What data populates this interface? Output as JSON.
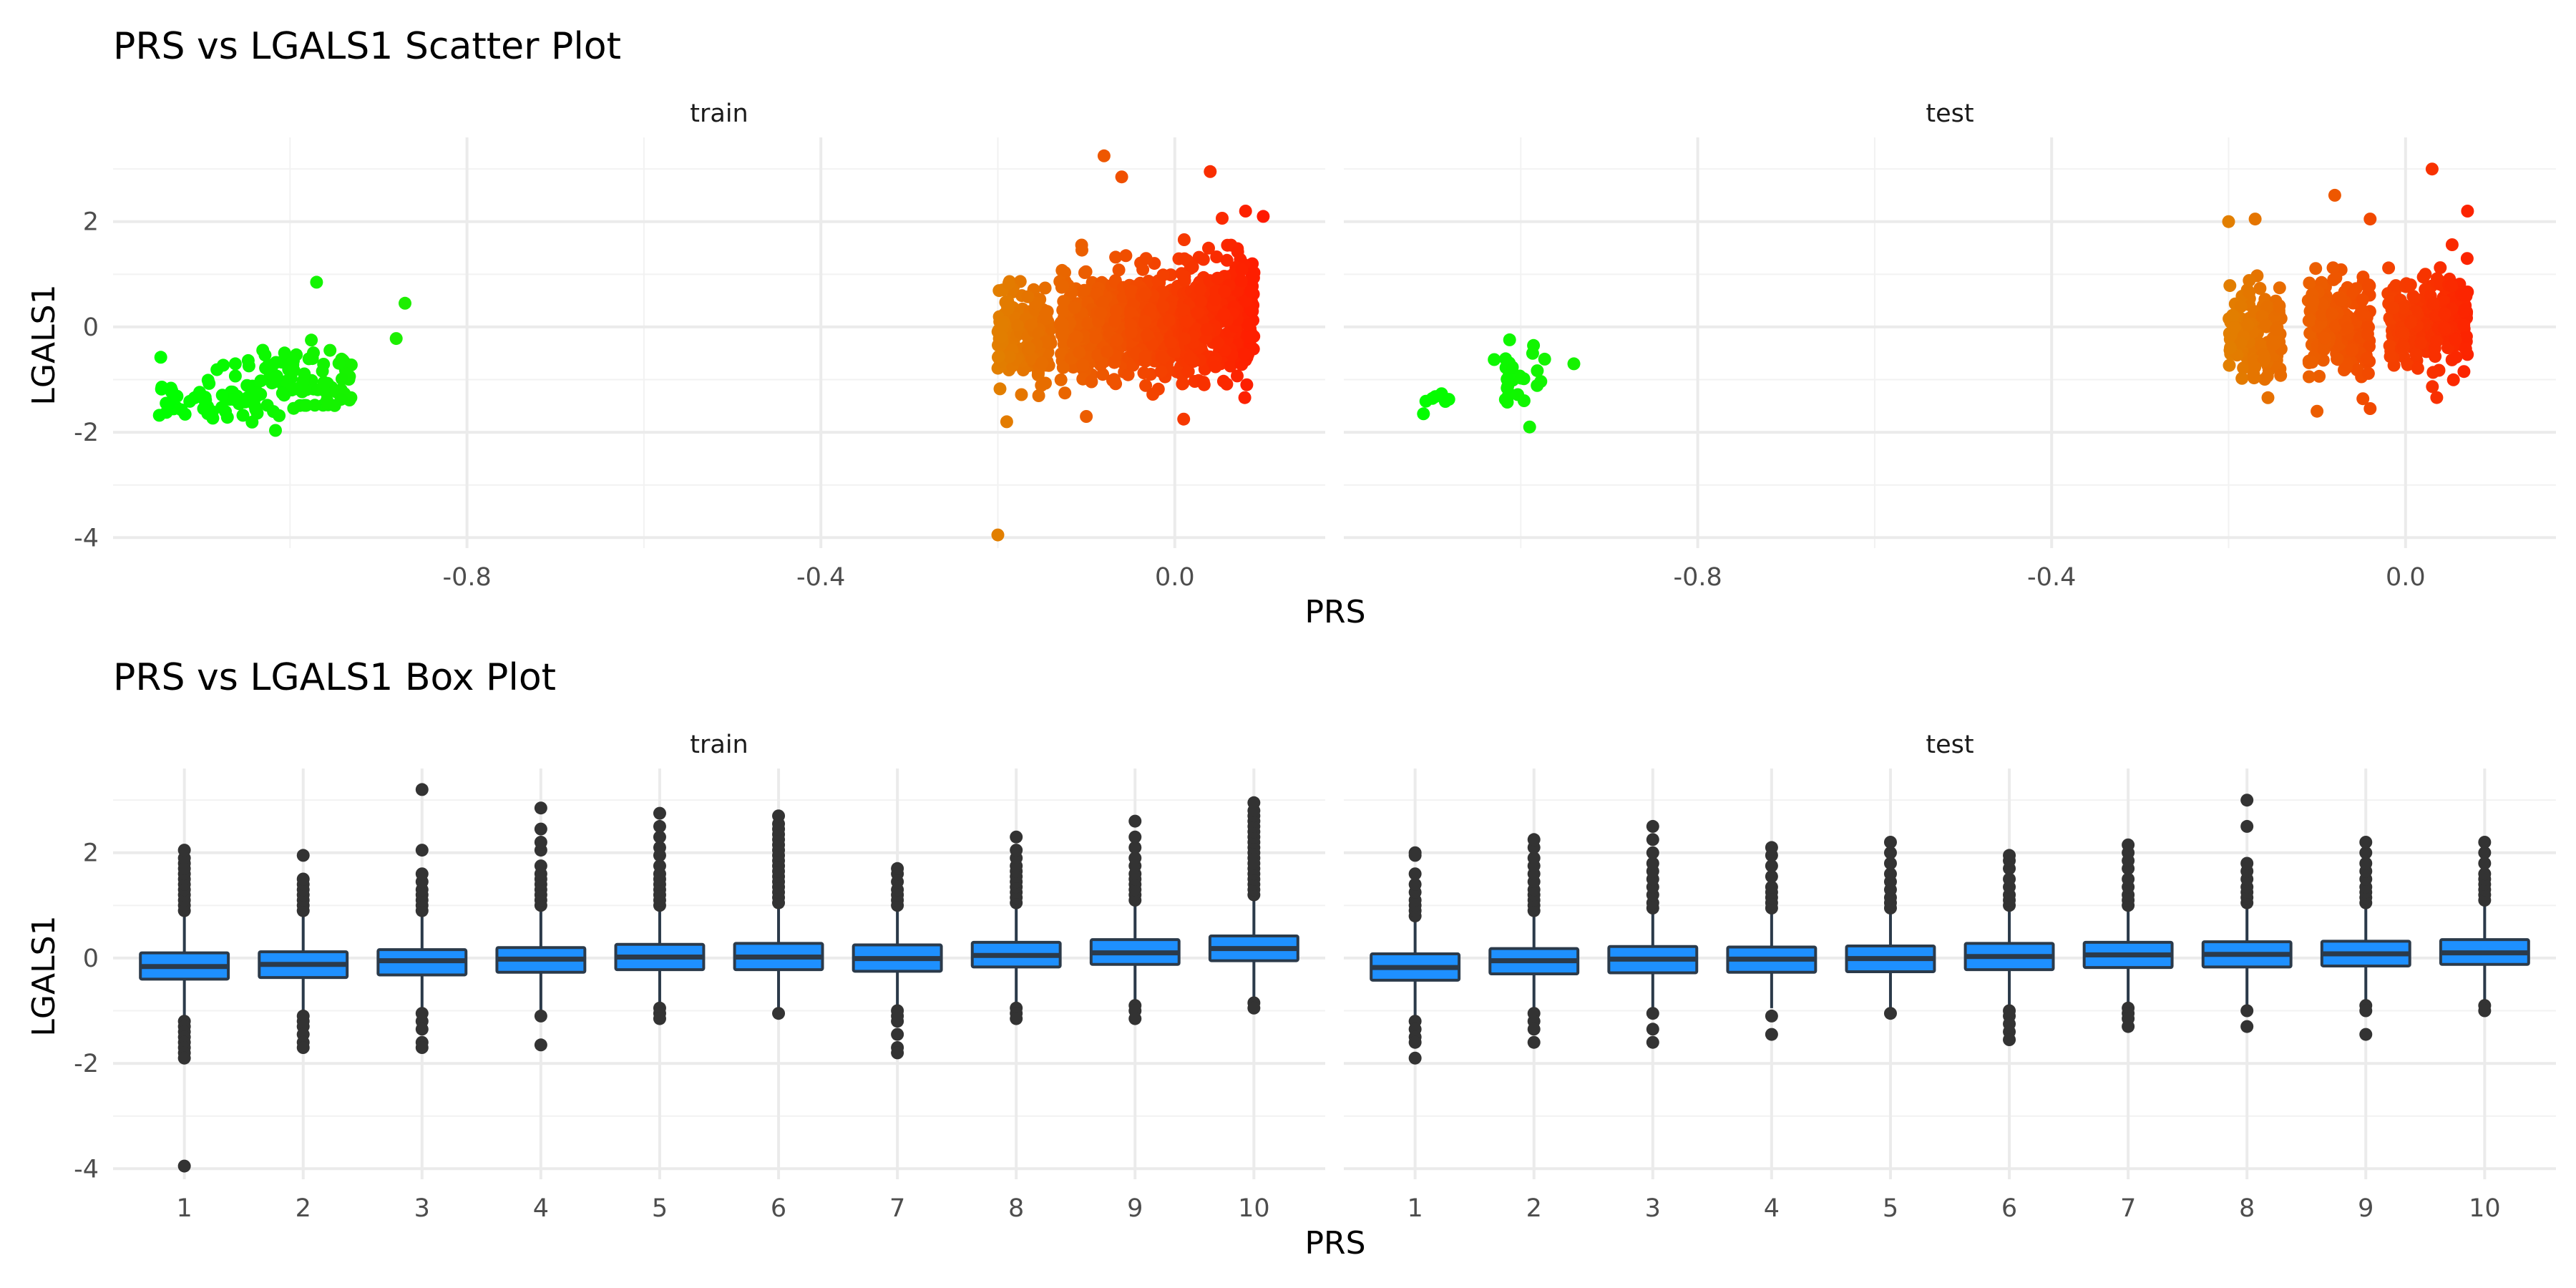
{
  "chart_data": [
    {
      "type": "scatter",
      "title": "PRS vs LGALS1 Scatter Plot",
      "xlabel": "PRS",
      "ylabel": "LGALS1",
      "xlim": [
        -1.2,
        0.17
      ],
      "ylim": [
        -4.2,
        3.6
      ],
      "x_ticks": [
        "-0.8",
        "-0.4",
        "0.0"
      ],
      "y_ticks": [
        "-4",
        "-2",
        "0",
        "2"
      ],
      "color_gradient": {
        "low": "#00ff00",
        "mid": "#e27f00",
        "high": "#ff1a00"
      },
      "grid": true,
      "legend": "none",
      "panels": [
        {
          "name": "train",
          "clusters": [
            {
              "x_range": [
                -1.15,
                -1.04
              ],
              "y_mean": -1.3,
              "y_sd": 0.3,
              "n": 55
            },
            {
              "x_range": [
                -1.05,
                -0.93
              ],
              "y_mean": -1.05,
              "y_sd": 0.35,
              "n": 90
            },
            {
              "x_range": [
                -0.2,
                -0.14
              ],
              "y_mean": -0.2,
              "y_sd": 0.45,
              "n": 180
            },
            {
              "x_range": [
                -0.13,
                -0.05
              ],
              "y_mean": 0.0,
              "y_sd": 0.5,
              "n": 300
            },
            {
              "x_range": [
                -0.05,
                0.01
              ],
              "y_mean": 0.05,
              "y_sd": 0.5,
              "n": 300
            },
            {
              "x_range": [
                0.01,
                0.09
              ],
              "y_mean": 0.15,
              "y_sd": 0.55,
              "n": 350
            }
          ],
          "points": [
            {
              "x": -0.97,
              "y": 0.85
            },
            {
              "x": -0.87,
              "y": 0.45
            },
            {
              "x": -0.88,
              "y": -0.22
            },
            {
              "x": -0.2,
              "y": -3.95
            },
            {
              "x": -0.19,
              "y": -1.8
            },
            {
              "x": -0.08,
              "y": 3.25
            },
            {
              "x": -0.06,
              "y": 2.85
            },
            {
              "x": 0.04,
              "y": 2.95
            },
            {
              "x": 0.08,
              "y": 2.2
            },
            {
              "x": 0.1,
              "y": 2.1
            },
            {
              "x": 0.01,
              "y": -1.75
            },
            {
              "x": -0.1,
              "y": -1.7
            }
          ]
        },
        {
          "name": "test",
          "clusters": [
            {
              "x_range": [
                -1.11,
                -1.08
              ],
              "y_mean": -1.35,
              "y_sd": 0.1,
              "n": 6
            },
            {
              "x_range": [
                -1.02,
                -0.97
              ],
              "y_mean": -0.9,
              "y_sd": 0.35,
              "n": 25
            },
            {
              "x_range": [
                -0.2,
                -0.14
              ],
              "y_mean": -0.1,
              "y_sd": 0.4,
              "n": 160
            },
            {
              "x_range": [
                -0.11,
                -0.04
              ],
              "y_mean": 0.05,
              "y_sd": 0.45,
              "n": 220
            },
            {
              "x_range": [
                -0.02,
                0.07
              ],
              "y_mean": 0.1,
              "y_sd": 0.45,
              "n": 260
            }
          ],
          "points": [
            {
              "x": -1.11,
              "y": -1.65
            },
            {
              "x": -0.99,
              "y": -1.9
            },
            {
              "x": -0.94,
              "y": -0.7
            },
            {
              "x": -1.03,
              "y": -0.62
            },
            {
              "x": -0.2,
              "y": 2.0
            },
            {
              "x": -0.17,
              "y": 2.05
            },
            {
              "x": -0.08,
              "y": 2.5
            },
            {
              "x": -0.04,
              "y": 2.05
            },
            {
              "x": 0.03,
              "y": 3.0
            },
            {
              "x": 0.07,
              "y": 2.2
            },
            {
              "x": -0.1,
              "y": -1.6
            },
            {
              "x": -0.04,
              "y": -1.55
            }
          ]
        }
      ]
    },
    {
      "type": "box",
      "title": "PRS vs LGALS1 Box Plot",
      "xlabel": "PRS",
      "ylabel": "LGALS1",
      "ylim": [
        -4.2,
        3.6
      ],
      "categories": [
        "1",
        "2",
        "3",
        "4",
        "5",
        "6",
        "7",
        "8",
        "9",
        "10"
      ],
      "y_ticks": [
        "-4",
        "-2",
        "0",
        "2"
      ],
      "box_fill": "#1e90ff",
      "box_stroke": "#2b3a4a",
      "outlier_color": "#333333",
      "grid": true,
      "panels": [
        {
          "name": "train",
          "boxes": [
            {
              "q1": -0.4,
              "median": -0.16,
              "q3": 0.1,
              "whisker_low": -1.15,
              "whisker_high": 0.85,
              "outliers_high": [
                0.9,
                1.0,
                1.1,
                1.2,
                1.3,
                1.4,
                1.5,
                1.6,
                1.7,
                1.8,
                1.9,
                2.05
              ],
              "outliers_low": [
                -1.2,
                -1.3,
                -1.4,
                -1.5,
                -1.6,
                -1.7,
                -1.8,
                -1.9,
                -3.95
              ]
            },
            {
              "q1": -0.37,
              "median": -0.12,
              "q3": 0.12,
              "whisker_low": -1.05,
              "whisker_high": 0.82,
              "outliers_high": [
                0.9,
                1.0,
                1.1,
                1.2,
                1.3,
                1.4,
                1.5,
                1.95
              ],
              "outliers_low": [
                -1.1,
                -1.2,
                -1.3,
                -1.45,
                -1.6,
                -1.7
              ]
            },
            {
              "q1": -0.32,
              "median": -0.05,
              "q3": 0.16,
              "whisker_low": -1.0,
              "whisker_high": 0.85,
              "outliers_high": [
                0.9,
                1.0,
                1.1,
                1.2,
                1.3,
                1.45,
                1.6,
                2.05,
                3.2
              ],
              "outliers_low": [
                -1.05,
                -1.2,
                -1.35,
                -1.6,
                -1.7
              ]
            },
            {
              "q1": -0.27,
              "median": -0.02,
              "q3": 0.2,
              "whisker_low": -1.0,
              "whisker_high": 0.9,
              "outliers_high": [
                1.0,
                1.1,
                1.2,
                1.3,
                1.4,
                1.5,
                1.6,
                1.75,
                2.05,
                2.2,
                2.45,
                2.85
              ],
              "outliers_low": [
                -1.1,
                -1.65
              ]
            },
            {
              "q1": -0.22,
              "median": 0.02,
              "q3": 0.26,
              "whisker_low": -0.95,
              "whisker_high": 0.95,
              "outliers_high": [
                1.0,
                1.1,
                1.2,
                1.3,
                1.4,
                1.5,
                1.6,
                1.75,
                1.95,
                2.1,
                2.3,
                2.5,
                2.75
              ],
              "outliers_low": [
                -0.95,
                -1.05,
                -1.15
              ]
            },
            {
              "q1": -0.22,
              "median": 0.02,
              "q3": 0.28,
              "whisker_low": -1.0,
              "whisker_high": 1.0,
              "outliers_high": [
                1.05,
                1.15,
                1.25,
                1.35,
                1.45,
                1.55,
                1.65,
                1.75,
                1.85,
                1.95,
                2.05,
                2.15,
                2.25,
                2.35,
                2.45,
                2.55,
                2.7
              ],
              "outliers_low": [
                -1.05
              ]
            },
            {
              "q1": -0.25,
              "median": -0.01,
              "q3": 0.25,
              "whisker_low": -0.95,
              "whisker_high": 0.95,
              "outliers_high": [
                1.0,
                1.1,
                1.2,
                1.3,
                1.45,
                1.6,
                1.7
              ],
              "outliers_low": [
                -1.0,
                -1.1,
                -1.2,
                -1.45,
                -1.7,
                -1.8
              ]
            },
            {
              "q1": -0.17,
              "median": 0.05,
              "q3": 0.3,
              "whisker_low": -0.9,
              "whisker_high": 1.0,
              "outliers_high": [
                1.05,
                1.15,
                1.25,
                1.35,
                1.45,
                1.55,
                1.65,
                1.75,
                1.9,
                2.05,
                2.3
              ],
              "outliers_low": [
                -0.95,
                -1.05,
                -1.15
              ]
            },
            {
              "q1": -0.12,
              "median": 0.1,
              "q3": 0.35,
              "whisker_low": -0.85,
              "whisker_high": 1.05,
              "outliers_high": [
                1.1,
                1.2,
                1.3,
                1.4,
                1.5,
                1.6,
                1.75,
                1.9,
                2.1,
                2.3,
                2.6
              ],
              "outliers_low": [
                -0.9,
                -1.0,
                -1.15
              ]
            },
            {
              "q1": -0.05,
              "median": 0.18,
              "q3": 0.42,
              "whisker_low": -0.8,
              "whisker_high": 1.15,
              "outliers_high": [
                1.2,
                1.3,
                1.4,
                1.5,
                1.6,
                1.7,
                1.8,
                1.9,
                2.0,
                2.1,
                2.2,
                2.3,
                2.4,
                2.5,
                2.6,
                2.7,
                2.8,
                2.95
              ],
              "outliers_low": [
                -0.85,
                -0.95
              ]
            }
          ]
        },
        {
          "name": "test",
          "boxes": [
            {
              "q1": -0.42,
              "median": -0.18,
              "q3": 0.08,
              "whisker_low": -1.1,
              "whisker_high": 0.75,
              "outliers_high": [
                0.8,
                0.9,
                1.0,
                1.1,
                1.25,
                1.4,
                1.6,
                1.95,
                2.0
              ],
              "outliers_low": [
                -1.2,
                -1.35,
                -1.5,
                -1.6,
                -1.9
              ]
            },
            {
              "q1": -0.3,
              "median": -0.05,
              "q3": 0.18,
              "whisker_low": -1.0,
              "whisker_high": 0.85,
              "outliers_high": [
                0.9,
                1.0,
                1.1,
                1.2,
                1.3,
                1.45,
                1.6,
                1.75,
                1.9,
                2.1,
                2.25
              ],
              "outliers_low": [
                -1.05,
                -1.2,
                -1.35,
                -1.6
              ]
            },
            {
              "q1": -0.28,
              "median": -0.02,
              "q3": 0.22,
              "whisker_low": -0.95,
              "whisker_high": 0.9,
              "outliers_high": [
                0.95,
                1.05,
                1.2,
                1.35,
                1.5,
                1.65,
                1.8,
                2.0,
                2.25,
                2.5
              ],
              "outliers_low": [
                -1.05,
                -1.35,
                -1.6
              ]
            },
            {
              "q1": -0.27,
              "median": -0.02,
              "q3": 0.21,
              "whisker_low": -0.95,
              "whisker_high": 0.9,
              "outliers_high": [
                0.95,
                1.05,
                1.15,
                1.25,
                1.35,
                1.55,
                1.75,
                1.95,
                2.1
              ],
              "outliers_low": [
                -1.1,
                -1.45
              ]
            },
            {
              "q1": -0.26,
              "median": -0.01,
              "q3": 0.23,
              "whisker_low": -0.95,
              "whisker_high": 0.9,
              "outliers_high": [
                0.95,
                1.05,
                1.15,
                1.3,
                1.45,
                1.6,
                1.8,
                2.0,
                2.2
              ],
              "outliers_low": [
                -1.05
              ]
            },
            {
              "q1": -0.22,
              "median": 0.03,
              "q3": 0.28,
              "whisker_low": -0.95,
              "whisker_high": 0.95,
              "outliers_high": [
                1.0,
                1.1,
                1.2,
                1.35,
                1.5,
                1.7,
                1.85,
                1.95
              ],
              "outliers_low": [
                -1.0,
                -1.1,
                -1.25,
                -1.4,
                -1.55
              ]
            },
            {
              "q1": -0.18,
              "median": 0.06,
              "q3": 0.3,
              "whisker_low": -0.9,
              "whisker_high": 0.95,
              "outliers_high": [
                1.0,
                1.1,
                1.2,
                1.35,
                1.5,
                1.7,
                1.85,
                2.0,
                2.15
              ],
              "outliers_low": [
                -0.95,
                -1.05,
                -1.15,
                -1.3
              ]
            },
            {
              "q1": -0.17,
              "median": 0.07,
              "q3": 0.31,
              "whisker_low": -0.9,
              "whisker_high": 1.0,
              "outliers_high": [
                1.05,
                1.15,
                1.25,
                1.35,
                1.5,
                1.65,
                1.8,
                2.5,
                3.0
              ],
              "outliers_low": [
                -1.0,
                -1.3
              ]
            },
            {
              "q1": -0.15,
              "median": 0.08,
              "q3": 0.32,
              "whisker_low": -0.85,
              "whisker_high": 1.0,
              "outliers_high": [
                1.05,
                1.15,
                1.25,
                1.35,
                1.5,
                1.65,
                1.8,
                2.0,
                2.2
              ],
              "outliers_low": [
                -0.9,
                -1.0,
                -1.45
              ]
            },
            {
              "q1": -0.12,
              "median": 0.1,
              "q3": 0.35,
              "whisker_low": -0.85,
              "whisker_high": 1.05,
              "outliers_high": [
                1.1,
                1.2,
                1.3,
                1.4,
                1.5,
                1.6,
                1.8,
                2.0,
                2.2
              ],
              "outliers_low": [
                -0.9,
                -1.0
              ]
            }
          ]
        }
      ]
    }
  ]
}
